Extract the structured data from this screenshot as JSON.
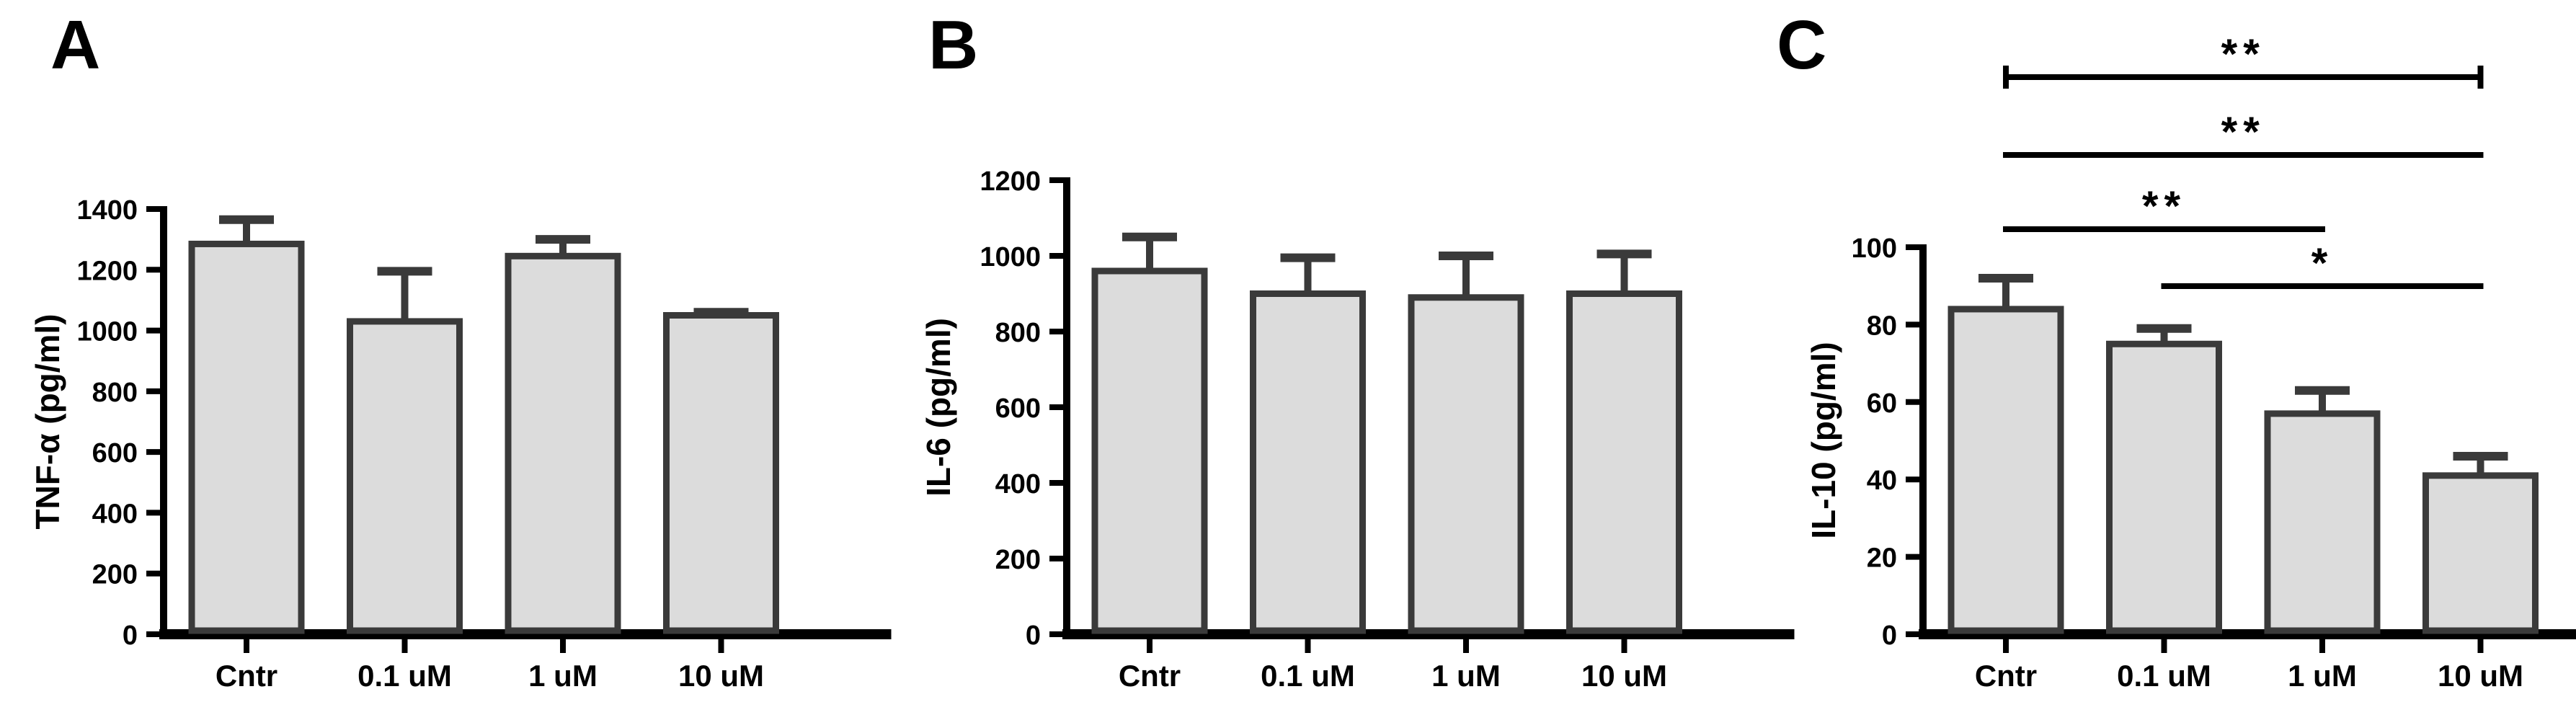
{
  "figure": {
    "background": "#ffffff",
    "panel_letters": [
      "A",
      "B",
      "C"
    ]
  },
  "colors": {
    "bar_fill": "#dcdcdc",
    "bar_border": "#3a3a3a",
    "error_bar": "#3a3a3a",
    "axis": "#000000",
    "text": "#000000"
  },
  "chart_data": [
    {
      "panel_label": "A",
      "type": "bar",
      "ylabel": "TNF-α (pg/ml)",
      "xlabel": "",
      "categories": [
        "Cntr",
        "0.1 uM",
        "1 uM",
        "10 uM"
      ],
      "values": [
        1285,
        1030,
        1245,
        1050
      ],
      "errors": [
        80,
        165,
        55,
        10
      ],
      "ylim": [
        0,
        1400
      ],
      "ytick_step": 200,
      "grid": false,
      "legend": "none"
    },
    {
      "panel_label": "B",
      "type": "bar",
      "ylabel": "IL-6 (pg/ml)",
      "xlabel": "",
      "categories": [
        "Cntr",
        "0.1 uM",
        "1 uM",
        "10 uM"
      ],
      "values": [
        960,
        900,
        890,
        900
      ],
      "errors": [
        90,
        95,
        110,
        105
      ],
      "ylim": [
        0,
        1200
      ],
      "ytick_step": 200,
      "grid": false,
      "legend": "none"
    },
    {
      "panel_label": "C",
      "type": "bar",
      "ylabel": "IL-10 (pg/ml)",
      "xlabel": "",
      "categories": [
        "Cntr",
        "0.1 uM",
        "1 uM",
        "10 uM"
      ],
      "values": [
        84,
        75,
        57,
        41
      ],
      "errors": [
        8,
        4,
        6,
        5
      ],
      "ylim": [
        0,
        100
      ],
      "ytick_step": 20,
      "grid": false,
      "legend": "none",
      "comparisons": [
        {
          "from": "Cntr",
          "to": "10 uM",
          "label": "**",
          "capped": true
        },
        {
          "from": "Cntr",
          "to": "10 uM",
          "label": "**",
          "capped": false
        },
        {
          "from": "Cntr",
          "to": "1 uM",
          "label": "**",
          "capped": false
        },
        {
          "from": "0.1 uM",
          "to": "10 uM",
          "label": "*",
          "capped": false
        }
      ]
    }
  ]
}
